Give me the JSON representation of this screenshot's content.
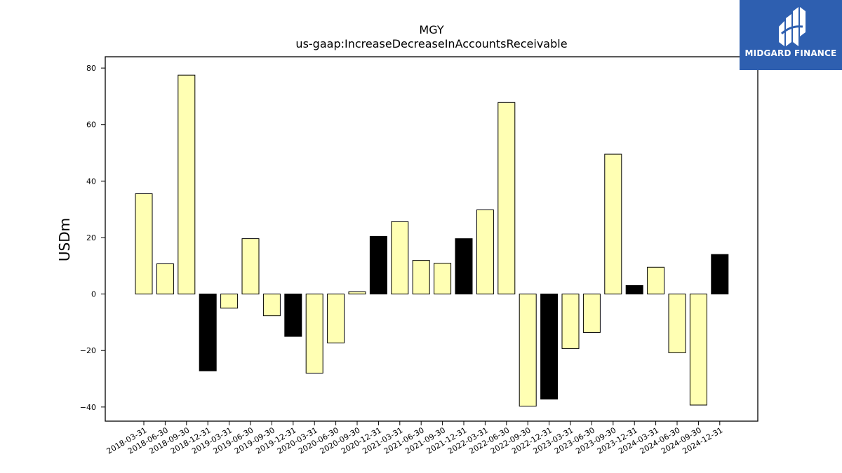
{
  "brand": {
    "name": "MIDGARD FINANCE",
    "bg_color": "#2e5fb0",
    "icon": "midgard-logo-icon"
  },
  "chart_data": {
    "type": "bar",
    "title": "MGY",
    "subtitle": "us-gaap:IncreaseDecreaseInAccountsReceivable",
    "xlabel": "",
    "ylabel": "USDm",
    "ylim": [
      -45,
      84
    ],
    "yticks": [
      -40,
      -20,
      0,
      20,
      40,
      60,
      80
    ],
    "grid": false,
    "colors": {
      "quarter": "#ffffb3",
      "year_end": "#000000",
      "edge": "#000000"
    },
    "categories": [
      "2018-03-31",
      "2018-06-30",
      "2018-09-30",
      "2018-12-31",
      "2019-03-31",
      "2019-06-30",
      "2019-09-30",
      "2019-12-31",
      "2020-03-31",
      "2020-06-30",
      "2020-09-30",
      "2020-12-31",
      "2021-03-31",
      "2021-06-30",
      "2021-09-30",
      "2021-12-31",
      "2022-03-31",
      "2022-06-30",
      "2022-09-30",
      "2022-12-31",
      "2023-03-31",
      "2023-06-30",
      "2023-09-30",
      "2023-12-31",
      "2024-03-31",
      "2024-06-30",
      "2024-09-30",
      "2024-12-31"
    ],
    "values": [
      35.5,
      10.7,
      77.5,
      -27.2,
      -5.0,
      19.6,
      -7.7,
      -15.0,
      -28.0,
      -17.3,
      0.8,
      20.4,
      25.6,
      11.9,
      10.9,
      19.6,
      29.8,
      67.8,
      -39.7,
      -37.2,
      -19.3,
      -13.6,
      49.5,
      3.0,
      9.5,
      -20.8,
      -39.3,
      14.0
    ],
    "year_end": [
      false,
      false,
      false,
      true,
      false,
      false,
      false,
      true,
      false,
      false,
      false,
      true,
      false,
      false,
      false,
      true,
      false,
      false,
      false,
      true,
      false,
      false,
      false,
      true,
      false,
      false,
      false,
      true
    ]
  }
}
